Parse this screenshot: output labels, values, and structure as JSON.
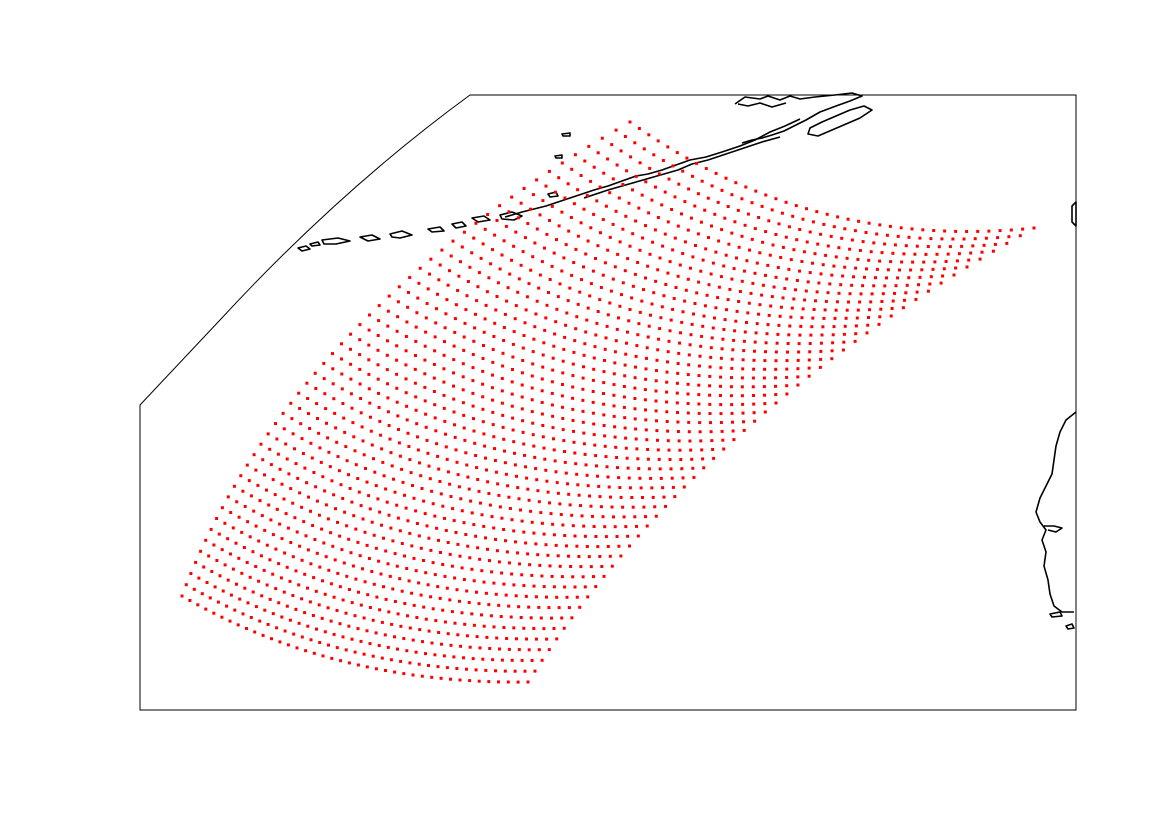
{
  "map": {
    "projection": "conic",
    "frame_color": "#000000",
    "coastline_color": "#000000",
    "point_color": "#ff0000",
    "point_marker": "square",
    "swath": {
      "scan_lines": 40,
      "points_per_line": 50
    },
    "landmasses": [
      "alaska-peninsula",
      "aleutian-islands",
      "north-america-west-coast"
    ]
  }
}
